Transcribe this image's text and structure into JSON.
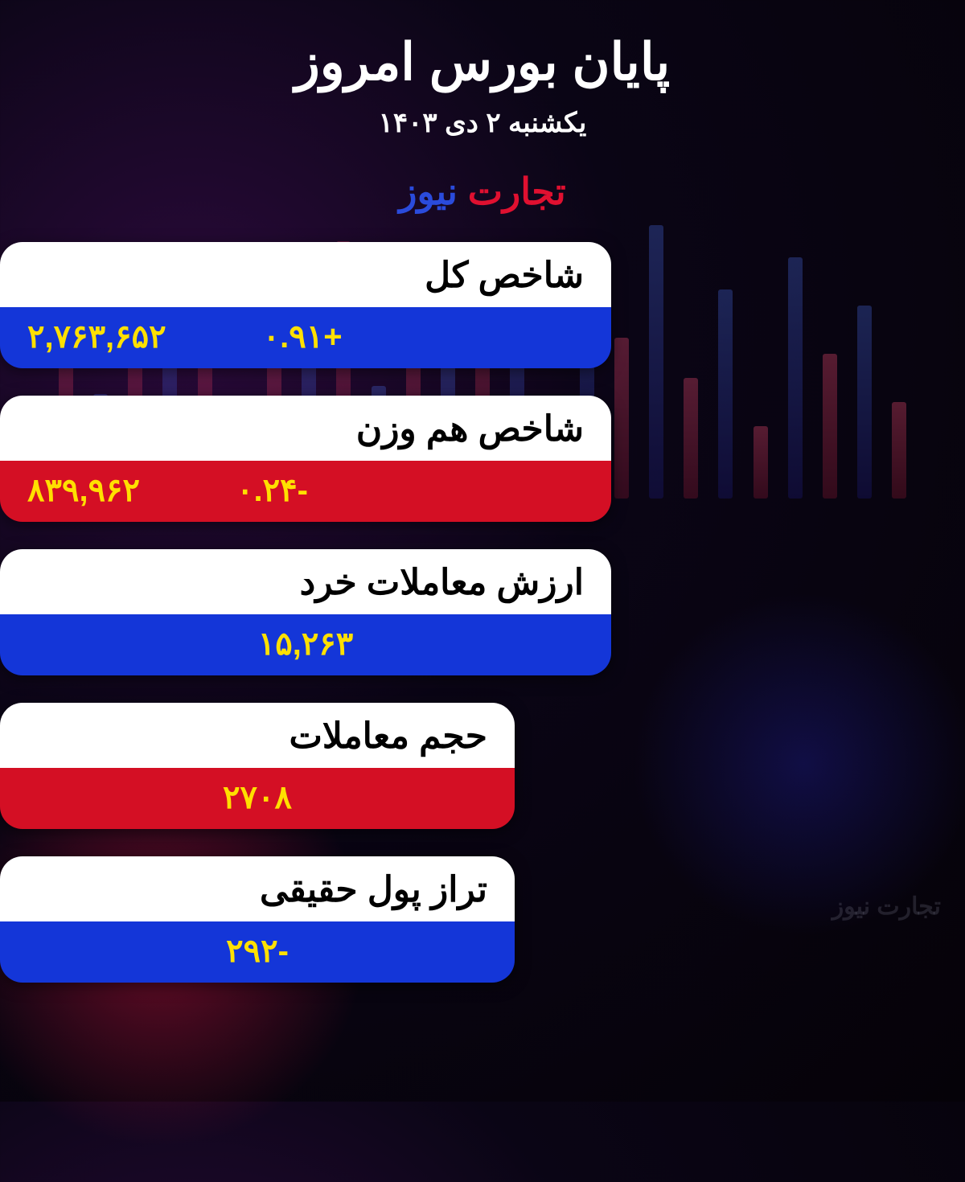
{
  "header": {
    "title": "پایان بورس امروز",
    "date": "یکشنبه ۲ دی ۱۴۰۳"
  },
  "brand": {
    "word1": "تجارت",
    "word2": "نیوز"
  },
  "watermark_text": "تجارت نیوز",
  "colors": {
    "blue": "#1436d8",
    "red": "#d40f24",
    "yellow": "#ffe000",
    "white": "#ffffff",
    "black": "#000000",
    "brand_red": "#e01030",
    "brand_blue": "#2a4bdc"
  },
  "cards": [
    {
      "label": "شاخص کل",
      "value": "۲,۷۶۳,۶۵۲",
      "change": "+۰.۹۱",
      "change_sign": "pos",
      "bottom_color": "blue",
      "width": "wide"
    },
    {
      "label": "شاخص هم وزن",
      "value": "۸۳۹,۹۶۲",
      "change": "-۰.۲۴",
      "change_sign": "neg",
      "bottom_color": "red",
      "width": "wide"
    },
    {
      "label": "ارزش معاملات خرد",
      "value": "۱۵,۲۶۳",
      "change": null,
      "bottom_color": "blue",
      "width": "wide"
    },
    {
      "label": "حجم معاملات",
      "value": "۲۷۰۸",
      "change": null,
      "bottom_color": "red",
      "width": "narrow"
    },
    {
      "label": "تراز پول حقیقی",
      "value": "-۲۹۲",
      "change": null,
      "bottom_color": "blue",
      "width": "narrow"
    }
  ],
  "bg_bar_heights": [
    120,
    240,
    180,
    300,
    90,
    260,
    150,
    340,
    200,
    280,
    110,
    230,
    310,
    170,
    260,
    140,
    320,
    190,
    250,
    100,
    280,
    210,
    300,
    130,
    270
  ]
}
